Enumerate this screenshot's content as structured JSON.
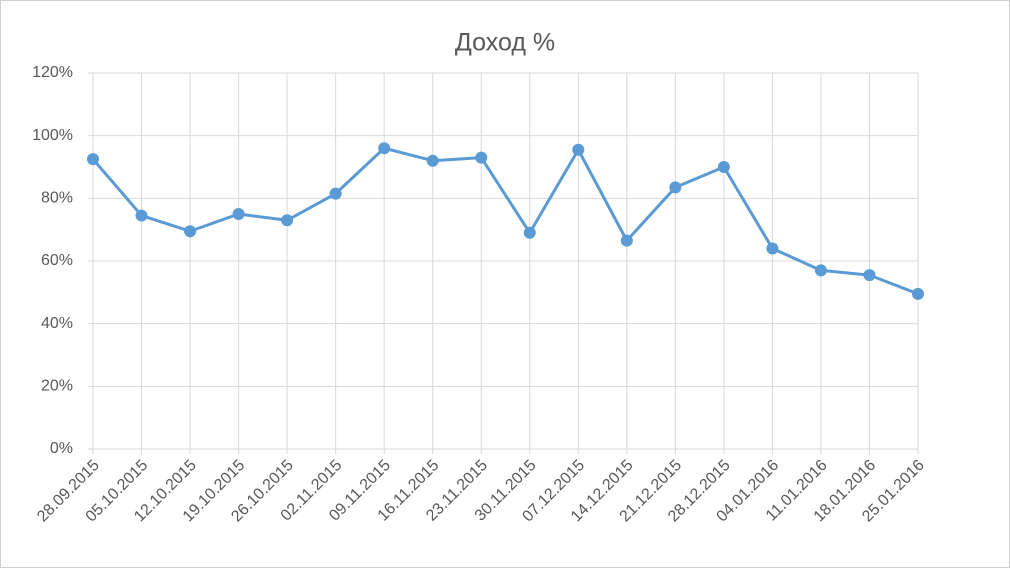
{
  "chart_data": {
    "type": "line",
    "title": "Доход %",
    "categories": [
      "28.09.2015",
      "05.10.2015",
      "12.10.2015",
      "19.10.2015",
      "26.10.2015",
      "02.11.2015",
      "09.11.2015",
      "16.11.2015",
      "23.11.2015",
      "30.11.2015",
      "07.12.2015",
      "14.12.2015",
      "21.12.2015",
      "28.12.2015",
      "04.01.2016",
      "11.01.2016",
      "18.01.2016",
      "25.01.2016"
    ],
    "values": [
      92.5,
      74.5,
      69.5,
      75,
      73,
      81.5,
      96,
      92,
      93,
      69,
      95.5,
      66.5,
      83.5,
      90,
      64,
      57,
      55.5,
      49.5
    ],
    "color": "#5b9bd5",
    "ylim": [
      0,
      120
    ],
    "yticks": [
      {
        "value": 0,
        "label": "0%"
      },
      {
        "value": 20,
        "label": "20%"
      },
      {
        "value": 40,
        "label": "40%"
      },
      {
        "value": 60,
        "label": "60%"
      },
      {
        "value": 80,
        "label": "80%"
      },
      {
        "value": 100,
        "label": "100%"
      },
      {
        "value": 120,
        "label": "120%"
      }
    ],
    "grid": true
  }
}
